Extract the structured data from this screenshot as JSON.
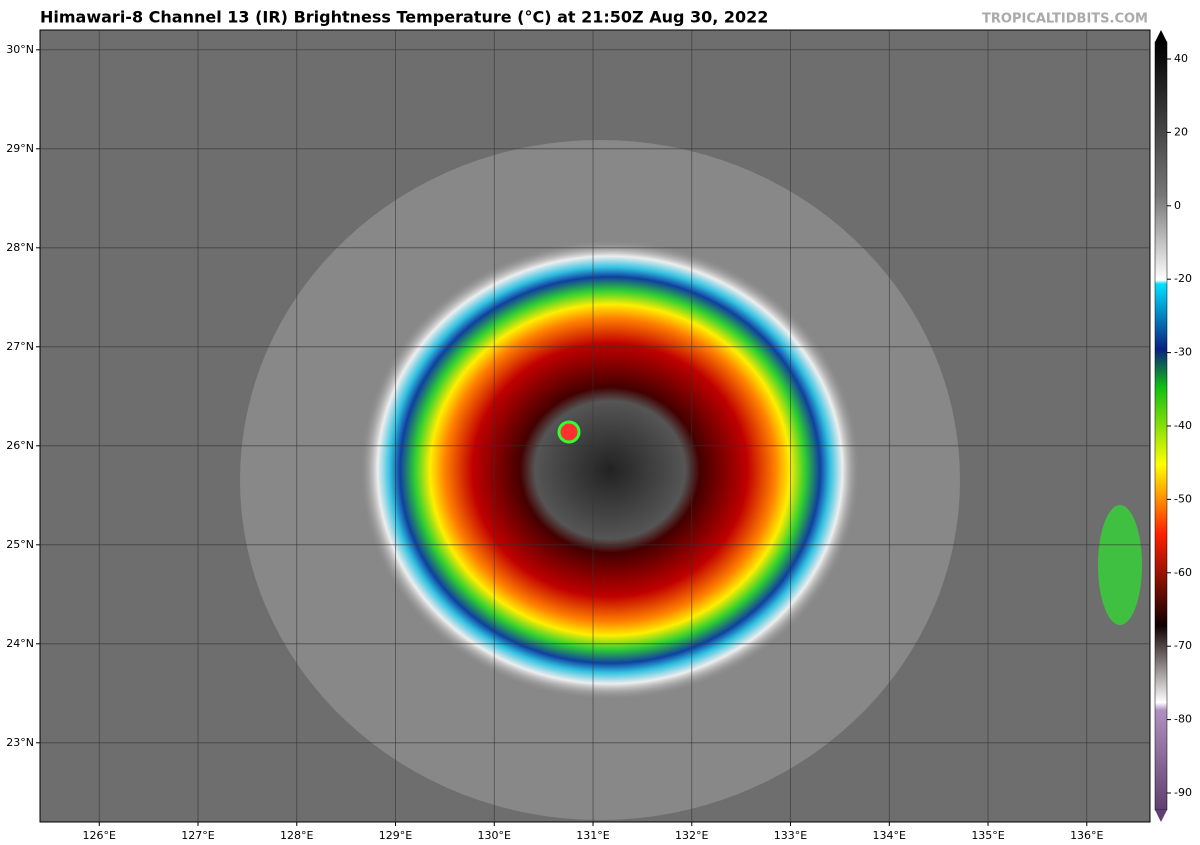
{
  "header": {
    "title": "Himawari-8 Channel 13 (IR) Brightness Temperature (°C) at 21:50Z Aug 30, 2022",
    "watermark": "TROPICALTIDBITS.COM"
  },
  "map": {
    "xlim": [
      125.4,
      136.64
    ],
    "ylim": [
      22.2,
      30.2
    ],
    "xticks": [
      {
        "value": 126,
        "label": "126°E"
      },
      {
        "value": 127,
        "label": "127°E"
      },
      {
        "value": 128,
        "label": "128°E"
      },
      {
        "value": 129,
        "label": "129°E"
      },
      {
        "value": 130,
        "label": "130°E"
      },
      {
        "value": 131,
        "label": "131°E"
      },
      {
        "value": 132,
        "label": "132°E"
      },
      {
        "value": 133,
        "label": "133°E"
      },
      {
        "value": 134,
        "label": "134°E"
      },
      {
        "value": 135,
        "label": "135°E"
      },
      {
        "value": 136,
        "label": "136°E"
      }
    ],
    "yticks": [
      {
        "value": 23,
        "label": "23°N"
      },
      {
        "value": 24,
        "label": "24°N"
      },
      {
        "value": 25,
        "label": "25°N"
      },
      {
        "value": 26,
        "label": "26°N"
      },
      {
        "value": 27,
        "label": "27°N"
      },
      {
        "value": 28,
        "label": "28°N"
      },
      {
        "value": 29,
        "label": "29°N"
      },
      {
        "value": 30,
        "label": "30°N"
      }
    ]
  },
  "colorbar": {
    "ticks": [
      40,
      20,
      0,
      -20,
      -30,
      -40,
      -50,
      -60,
      -70,
      -80,
      -90
    ]
  }
}
